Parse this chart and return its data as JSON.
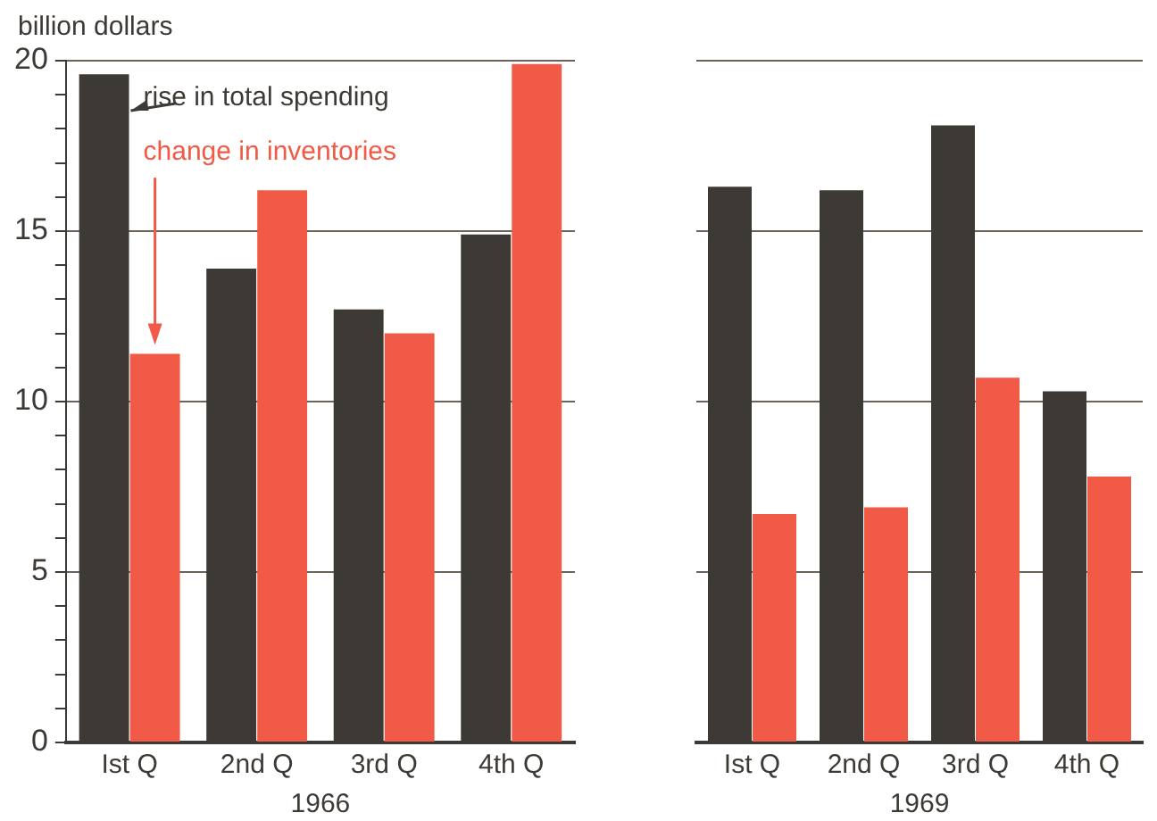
{
  "chart_data": [
    {
      "type": "bar",
      "ylabel": "billion dollars",
      "xlabel": "1966",
      "categories": [
        "Ist Q",
        "2nd Q",
        "3rd Q",
        "4th Q"
      ],
      "series": [
        {
          "name": "rise in total spending",
          "color": "#3d3935",
          "values": [
            19.6,
            13.9,
            12.7,
            14.9
          ]
        },
        {
          "name": "change in inventories",
          "color": "#f05a46",
          "values": [
            11.4,
            16.2,
            12.0,
            19.9
          ]
        }
      ],
      "ylim": [
        0,
        20
      ],
      "yticks": [
        0,
        {
          "value": 1,
          "label": null
        },
        {
          "value": 2,
          "label": null
        },
        {
          "value": 3,
          "label": null
        },
        {
          "value": 4,
          "label": null
        },
        5,
        {
          "value": 6,
          "label": null
        },
        {
          "value": 7,
          "label": null
        },
        {
          "value": 8,
          "label": null
        },
        {
          "value": 9,
          "label": null
        },
        10,
        {
          "value": 11,
          "label": null
        },
        {
          "value": 12,
          "label": null
        },
        {
          "value": 13,
          "label": null
        },
        {
          "value": 14,
          "label": null
        },
        15,
        {
          "value": 16,
          "label": null
        },
        {
          "value": 17,
          "label": null
        },
        {
          "value": 18,
          "label": null
        },
        {
          "value": 19,
          "label": null
        },
        20
      ],
      "grid": "y",
      "legend": "top left"
    },
    {
      "type": "bar",
      "xlabel": "1969",
      "categories": [
        "Ist Q",
        "2nd Q",
        "3rd Q",
        "4th Q"
      ],
      "series": [
        {
          "color": "#3d3935",
          "values": [
            16.3,
            16.2,
            18.1,
            10.3
          ]
        },
        {
          "color": "#f05a46",
          "values": [
            6.7,
            6.9,
            10.7,
            7.8
          ]
        }
      ],
      "ylim": [
        0,
        20
      ],
      "yticks": [
        0,
        5,
        10,
        15,
        20
      ],
      "tick_labels": "x",
      "grid": "y"
    }
  ]
}
